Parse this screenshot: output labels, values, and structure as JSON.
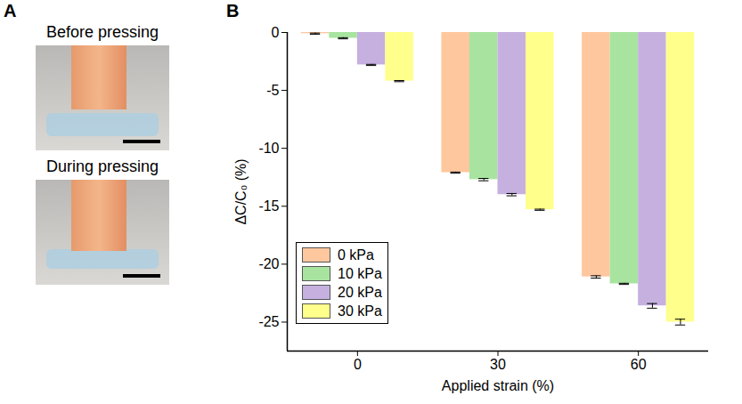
{
  "figure": {
    "panels": [
      {
        "letter": "A",
        "captions": [
          "Before pressing",
          "During pressing"
        ]
      },
      {
        "letter": "B"
      }
    ]
  },
  "chart_data": {
    "type": "bar",
    "x_label": "Applied strain (%)",
    "y_label": "ΔC/C₀ (%)",
    "categories": [
      "0",
      "30",
      "60"
    ],
    "series": [
      {
        "name": "0 kPa",
        "color": "#ffc79e",
        "values": [
          -0.1,
          -12.1,
          -21.1
        ],
        "errors": [
          0.05,
          0.05,
          0.1
        ]
      },
      {
        "name": "10 kPa",
        "color": "#a8e4a0",
        "values": [
          -0.5,
          -12.7,
          -21.7
        ],
        "errors": [
          0.05,
          0.1,
          0.05
        ]
      },
      {
        "name": "20 kPa",
        "color": "#c5b0e0",
        "values": [
          -2.8,
          -14.0,
          -23.6
        ],
        "errors": [
          0.05,
          0.1,
          0.2
        ]
      },
      {
        "name": "30 kPa",
        "color": "#ffff8c",
        "values": [
          -4.2,
          -15.3,
          -25.0
        ],
        "errors": [
          0.05,
          0.05,
          0.25
        ]
      }
    ],
    "ylim": [
      -27.5,
      0
    ],
    "yticks": [
      0,
      -5,
      -10,
      -15,
      -20,
      -25
    ],
    "legend": "lower left",
    "grid": false
  }
}
